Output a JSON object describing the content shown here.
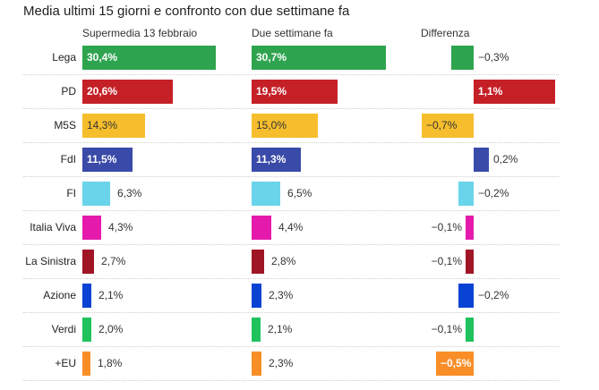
{
  "chart_data": {
    "type": "bar",
    "title": "Media ultimi 15 giorni e confronto con due settimane fa",
    "panels": [
      {
        "key": "current",
        "label": "Supermedia 13 febbraio"
      },
      {
        "key": "previous",
        "label": "Due settimane fa"
      },
      {
        "key": "diff",
        "label": "Differenza"
      }
    ],
    "categories": [
      "Lega",
      "PD",
      "M5S",
      "FdI",
      "FI",
      "Italia Viva",
      "La Sinistra",
      "Azione",
      "Verdi",
      "+EU"
    ],
    "series": [
      {
        "name": "Supermedia 13 febbraio",
        "values": [
          30.4,
          20.6,
          14.3,
          11.5,
          6.3,
          4.3,
          2.7,
          2.1,
          2.0,
          1.8
        ]
      },
      {
        "name": "Due settimane fa",
        "values": [
          30.7,
          19.5,
          15.0,
          11.3,
          6.5,
          4.4,
          2.8,
          2.3,
          2.1,
          2.3
        ]
      },
      {
        "name": "Differenza",
        "values": [
          -0.3,
          1.1,
          -0.7,
          0.2,
          -0.2,
          -0.1,
          -0.1,
          -0.2,
          -0.1,
          -0.5
        ]
      }
    ],
    "labels": {
      "current": [
        "30,4%",
        "20,6%",
        "14,3%",
        "11,5%",
        "6,3%",
        "4,3%",
        "2,7%",
        "2,1%",
        "2,0%",
        "1,8%"
      ],
      "previous": [
        "30,7%",
        "19,5%",
        "15,0%",
        "11,3%",
        "6,5%",
        "4,4%",
        "2,8%",
        "2,3%",
        "2,1%",
        "2,3%"
      ],
      "diff": [
        "−0,3%",
        "1,1%",
        "−0,7%",
        "0,2%",
        "−0,2%",
        "−0,1%",
        "−0,1%",
        "−0,2%",
        "−0,1%",
        "−0,5%"
      ]
    },
    "colors": [
      "#2ea44f",
      "#c62027",
      "#f6be2c",
      "#3a4aa8",
      "#6ad4ea",
      "#e51aad",
      "#a01525",
      "#0a43d4",
      "#1fc25c",
      "#f98e27"
    ],
    "xlabel": "",
    "ylabel": "",
    "grid": false,
    "legend": "none"
  }
}
